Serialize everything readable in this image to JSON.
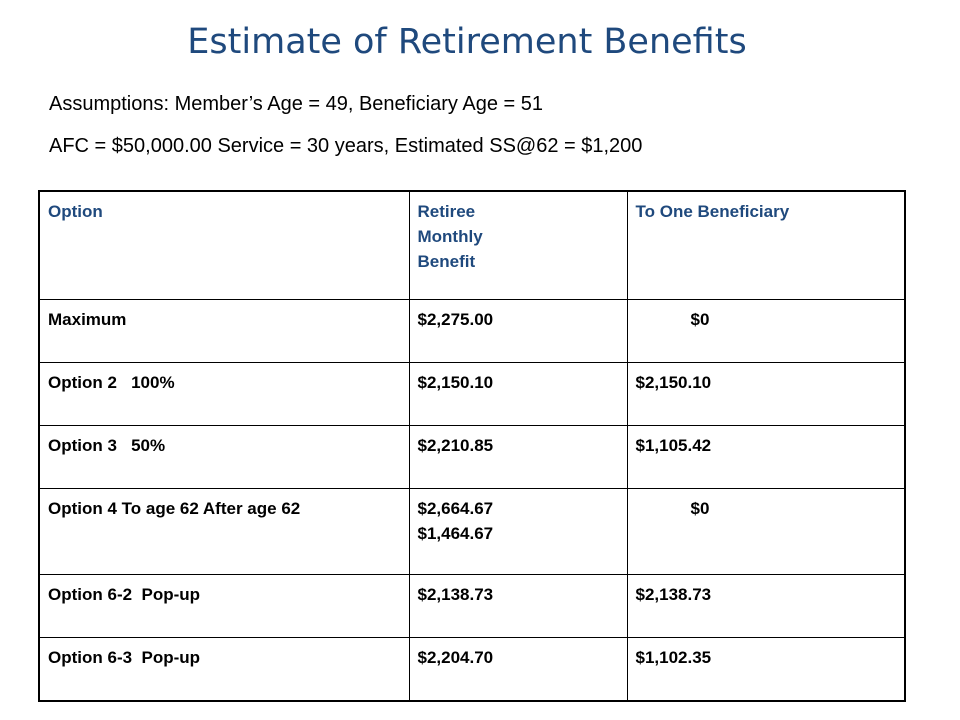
{
  "title": "Estimate of Retirement Benefits",
  "assumptions": {
    "line1": "Assumptions: Member’s Age = 49,  Beneficiary Age = 51",
    "line2": "AFC = $50,000.00  Service = 30 years,  Estimated SS@62 = $1,200"
  },
  "table": {
    "headers": [
      "Option",
      "Retiree Monthly Benefit",
      "To One Beneficiary"
    ],
    "rows": [
      {
        "option": "Maximum",
        "retiree": "$2,275.00",
        "beneficiary": "$0"
      },
      {
        "option": "Option 2   100%",
        "retiree": "$2,150.10",
        "beneficiary": "$2,150.10"
      },
      {
        "option": "Option 3   50%",
        "retiree": "$2,210.85",
        "beneficiary": "$1,105.42"
      },
      {
        "option": "Option 4 To age 62 After age 62",
        "retiree_line1": "$2,664.67",
        "retiree_line2": "$1,464.67",
        "beneficiary": "$0"
      },
      {
        "option": "Option 6-2  Pop-up",
        "retiree": "$2,138.73",
        "beneficiary": "$2,138.73"
      },
      {
        "option": "Option 6-3  Pop-up",
        "retiree": "$2,204.70",
        "beneficiary": "$1,102.35"
      }
    ]
  },
  "colors": {
    "title": "#1f497d",
    "header_text": "#1f497d",
    "body_text": "#000000",
    "border": "#000000"
  }
}
